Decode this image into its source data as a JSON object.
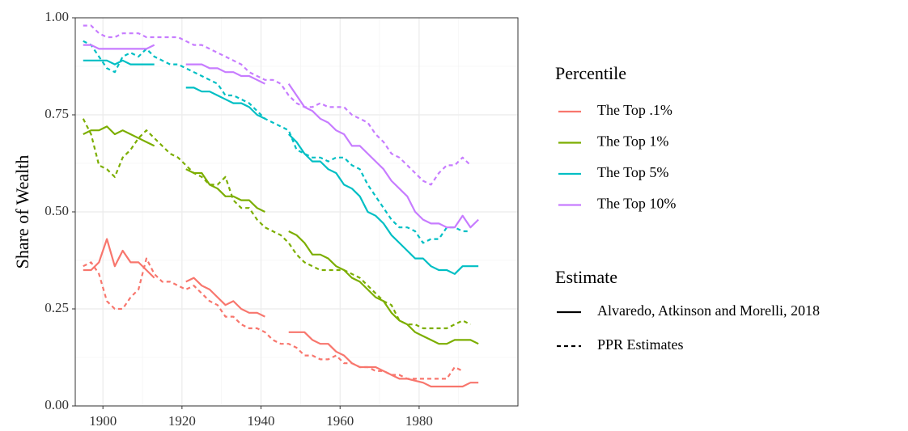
{
  "chart_data": {
    "type": "line",
    "y_label": "Share of Wealth",
    "x": [
      1895,
      1897,
      1899,
      1901,
      1903,
      1905,
      1907,
      1909,
      1911,
      1913,
      1915,
      1917,
      1919,
      1921,
      1923,
      1925,
      1927,
      1929,
      1931,
      1933,
      1935,
      1937,
      1939,
      1941,
      1943,
      1945,
      1947,
      1949,
      1951,
      1953,
      1955,
      1957,
      1959,
      1961,
      1963,
      1965,
      1967,
      1969,
      1971,
      1973,
      1975,
      1977,
      1979,
      1981,
      1983,
      1985,
      1987,
      1989,
      1991,
      1993,
      1995
    ],
    "xlim": [
      1893,
      2005
    ],
    "xticks": [
      1900,
      1920,
      1940,
      1960,
      1980
    ],
    "x_minor_grid": [
      1910,
      1930,
      1950,
      1970,
      1990
    ],
    "ylim": [
      0,
      1
    ],
    "yticks": [
      {
        "value": 0,
        "label": "0.00"
      },
      {
        "value": 0.25,
        "label": "0.25"
      },
      {
        "value": 0.5,
        "label": "0.50"
      },
      {
        "value": 0.75,
        "label": "0.75"
      },
      {
        "value": 1,
        "label": "1.00"
      }
    ],
    "y_minor_grid": [
      0.125,
      0.375,
      0.625,
      0.875
    ],
    "grid": true,
    "color_legend_title": "Percentile",
    "linetype_legend_title": "Estimate",
    "estimates": [
      {
        "name": "Alvaredo, Atkinson and Morelli, 2018",
        "dash": "none"
      },
      {
        "name": "PPR Estimates",
        "dash": "5 4"
      }
    ],
    "series": [
      {
        "name": "The Top .1%",
        "color": "#F8766D",
        "values": [
          [
            0.35,
            0.35,
            0.37,
            0.43,
            0.36,
            0.4,
            0.37,
            0.37,
            0.35,
            0.33,
            null,
            null,
            null,
            0.32,
            0.33,
            0.31,
            0.3,
            0.28,
            0.26,
            0.27,
            0.25,
            0.24,
            0.24,
            0.23,
            null,
            null,
            0.19,
            0.19,
            0.19,
            0.17,
            0.16,
            0.16,
            0.14,
            0.13,
            0.11,
            0.1,
            0.1,
            0.1,
            0.09,
            0.08,
            0.07,
            0.07,
            0.065,
            0.06,
            0.05,
            0.05,
            0.05,
            0.05,
            0.05,
            0.06,
            0.06
          ],
          [
            0.36,
            0.37,
            0.34,
            0.27,
            0.25,
            0.25,
            0.28,
            0.3,
            0.38,
            0.34,
            0.32,
            0.32,
            0.31,
            0.3,
            0.31,
            0.29,
            0.27,
            0.26,
            0.23,
            0.23,
            0.21,
            0.2,
            0.2,
            0.19,
            0.17,
            0.16,
            0.16,
            0.15,
            0.13,
            0.13,
            0.12,
            0.12,
            0.13,
            0.11,
            0.11,
            0.1,
            0.1,
            0.09,
            0.09,
            0.08,
            0.08,
            0.07,
            0.07,
            0.07,
            0.07,
            0.07,
            0.07,
            0.1,
            0.09,
            null,
            null
          ]
        ]
      },
      {
        "name": "The Top 1%",
        "color": "#7CAE00",
        "values": [
          [
            0.7,
            0.71,
            0.71,
            0.72,
            0.7,
            0.71,
            0.7,
            0.69,
            0.68,
            0.67,
            null,
            null,
            null,
            0.61,
            0.6,
            0.6,
            0.57,
            0.56,
            0.54,
            0.54,
            0.53,
            0.53,
            0.51,
            0.5,
            null,
            null,
            0.45,
            0.44,
            0.42,
            0.39,
            0.39,
            0.38,
            0.36,
            0.35,
            0.33,
            0.32,
            0.3,
            0.28,
            0.27,
            0.24,
            0.22,
            0.21,
            0.19,
            0.18,
            0.17,
            0.16,
            0.16,
            0.17,
            0.17,
            0.17,
            0.16
          ],
          [
            0.74,
            0.7,
            0.62,
            0.61,
            0.59,
            0.64,
            0.66,
            0.69,
            0.71,
            0.69,
            0.67,
            0.65,
            0.64,
            0.62,
            0.6,
            0.59,
            0.57,
            0.57,
            0.59,
            0.53,
            0.51,
            0.51,
            0.48,
            0.46,
            0.45,
            0.44,
            0.42,
            0.39,
            0.37,
            0.36,
            0.35,
            0.35,
            0.35,
            0.35,
            0.34,
            0.33,
            0.31,
            0.29,
            0.27,
            0.26,
            0.22,
            0.21,
            0.21,
            0.2,
            0.2,
            0.2,
            0.2,
            0.21,
            0.22,
            0.21,
            null
          ]
        ]
      },
      {
        "name": "The Top 5%",
        "color": "#00BFC4",
        "values": [
          [
            0.89,
            0.89,
            0.89,
            0.89,
            0.88,
            0.89,
            0.88,
            0.88,
            0.88,
            0.88,
            null,
            null,
            null,
            0.82,
            0.82,
            0.81,
            0.81,
            0.8,
            0.79,
            0.78,
            0.78,
            0.77,
            0.75,
            0.74,
            null,
            null,
            0.7,
            0.68,
            0.65,
            0.63,
            0.63,
            0.61,
            0.6,
            0.57,
            0.56,
            0.54,
            0.5,
            0.49,
            0.47,
            0.44,
            0.42,
            0.4,
            0.38,
            0.38,
            0.36,
            0.35,
            0.35,
            0.34,
            0.36,
            0.36,
            0.36
          ],
          [
            0.94,
            0.93,
            0.9,
            0.87,
            0.86,
            0.9,
            0.91,
            0.9,
            0.92,
            0.9,
            0.89,
            0.88,
            0.88,
            0.87,
            0.86,
            0.85,
            0.84,
            0.83,
            0.8,
            0.8,
            0.79,
            0.78,
            0.76,
            0.74,
            0.73,
            0.72,
            0.71,
            0.66,
            0.65,
            0.64,
            0.64,
            0.63,
            0.64,
            0.64,
            0.62,
            0.61,
            0.57,
            0.54,
            0.51,
            0.48,
            0.46,
            0.46,
            0.45,
            0.42,
            0.43,
            0.43,
            0.46,
            0.46,
            0.45,
            0.45,
            null
          ]
        ]
      },
      {
        "name": "The Top 10%",
        "color": "#C77CFF",
        "values": [
          [
            0.93,
            0.93,
            0.92,
            0.92,
            0.92,
            0.92,
            0.92,
            0.92,
            0.92,
            0.93,
            null,
            null,
            null,
            0.88,
            0.88,
            0.88,
            0.87,
            0.87,
            0.86,
            0.86,
            0.85,
            0.85,
            0.84,
            0.83,
            null,
            null,
            0.83,
            0.8,
            0.77,
            0.76,
            0.74,
            0.73,
            0.71,
            0.7,
            0.67,
            0.67,
            0.65,
            0.63,
            0.61,
            0.58,
            0.56,
            0.54,
            0.5,
            0.48,
            0.47,
            0.47,
            0.46,
            0.46,
            0.49,
            0.46,
            0.48
          ],
          [
            0.98,
            0.98,
            0.96,
            0.95,
            0.95,
            0.96,
            0.96,
            0.96,
            0.95,
            0.95,
            0.95,
            0.95,
            0.95,
            0.94,
            0.93,
            0.93,
            0.92,
            0.91,
            0.9,
            0.89,
            0.88,
            0.86,
            0.85,
            0.84,
            0.84,
            0.83,
            0.8,
            0.78,
            0.77,
            0.77,
            0.78,
            0.77,
            0.77,
            0.77,
            0.75,
            0.74,
            0.73,
            0.7,
            0.68,
            0.65,
            0.64,
            0.62,
            0.6,
            0.58,
            0.57,
            0.6,
            0.62,
            0.62,
            0.64,
            0.62,
            null
          ]
        ]
      }
    ]
  }
}
